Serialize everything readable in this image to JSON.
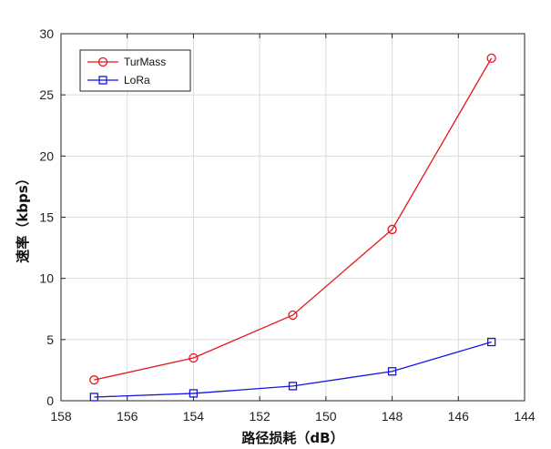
{
  "chart_data": {
    "type": "line",
    "title": "",
    "xlabel": "路径损耗（dB）",
    "ylabel": "速率（kbps）",
    "xlim": [
      158,
      144
    ],
    "ylim": [
      0,
      30
    ],
    "x_reversed": true,
    "xticks": [
      158,
      156,
      154,
      152,
      150,
      148,
      146,
      144
    ],
    "yticks": [
      0,
      5,
      10,
      15,
      20,
      25,
      30
    ],
    "grid": true,
    "legend_position": "top-left",
    "x": [
      157,
      154,
      151,
      148,
      145
    ],
    "series": [
      {
        "name": "TurMass",
        "color": "#e8141c",
        "marker": "circle",
        "values": [
          1.7,
          3.5,
          7.0,
          14.0,
          28.0
        ]
      },
      {
        "name": "LoRa",
        "color": "#1414e6",
        "marker": "square",
        "values": [
          0.3,
          0.6,
          1.2,
          2.4,
          4.8
        ]
      }
    ]
  }
}
